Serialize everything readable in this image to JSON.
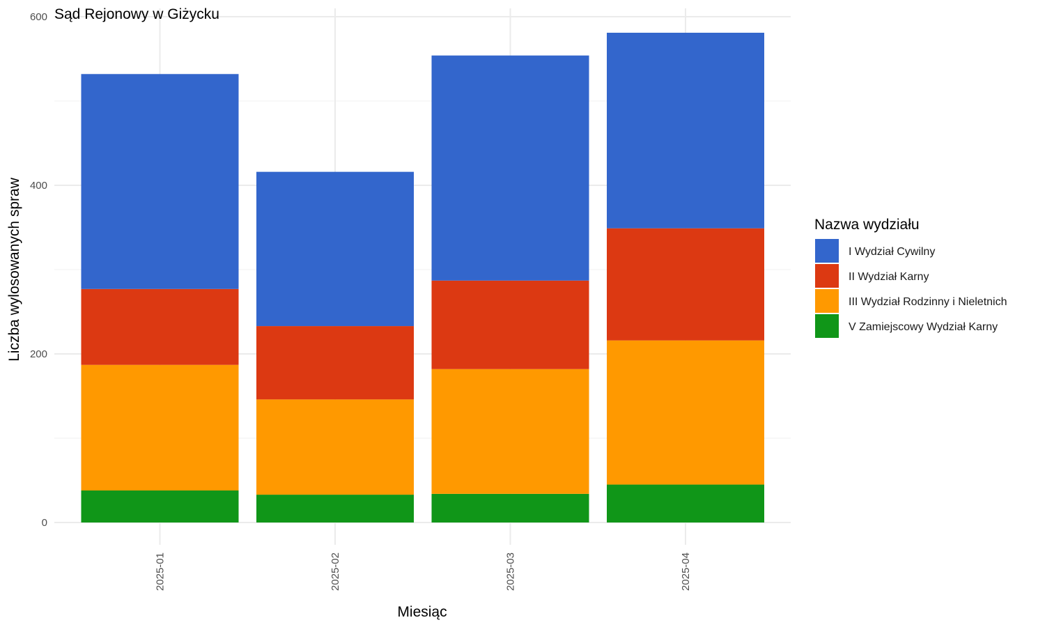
{
  "chart_data": {
    "type": "bar",
    "stacked": true,
    "title": "Sąd Rejonowy w Giżycku",
    "xlabel": "Miesiąc",
    "ylabel": "Liczba wylosowanych spraw",
    "categories": [
      "2025-01",
      "2025-02",
      "2025-03",
      "2025-04"
    ],
    "ylim": [
      0,
      600
    ],
    "yticks": [
      0,
      200,
      400,
      600
    ],
    "grid": true,
    "legend": {
      "title": "Nazwa wydziału",
      "position": "right"
    },
    "series": [
      {
        "name": "V Zamiejscowy Wydział Karny",
        "color": "#109618",
        "values": [
          38,
          33,
          34,
          45
        ]
      },
      {
        "name": "III Wydział Rodzinny i Nieletnich",
        "color": "#FF9900",
        "values": [
          149,
          113,
          148,
          171
        ]
      },
      {
        "name": "II Wydział Karny",
        "color": "#DC3912",
        "values": [
          90,
          87,
          105,
          133
        ]
      },
      {
        "name": "I Wydział Cywilny",
        "color": "#3366CC",
        "values": [
          255,
          183,
          267,
          232
        ]
      }
    ],
    "legend_order": [
      "I Wydział Cywilny",
      "II Wydział Karny",
      "III Wydział Rodzinny i Nieletnich",
      "V Zamiejscowy Wydział Karny"
    ]
  }
}
